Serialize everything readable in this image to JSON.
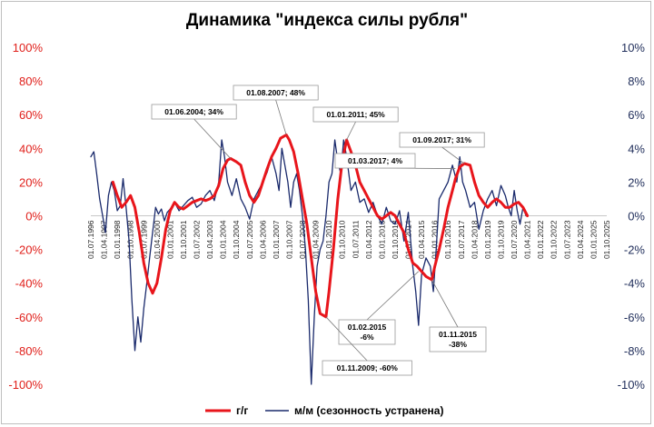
{
  "chart_data": {
    "type": "line",
    "title": "Динамика \"индекса силы рубля\"",
    "left_axis": {
      "ticks": [
        "100%",
        "80%",
        "60%",
        "40%",
        "20%",
        "0%",
        "-20%",
        "-40%",
        "-60%",
        "-80%",
        "-100%"
      ],
      "values": [
        100,
        80,
        60,
        40,
        20,
        0,
        -20,
        -40,
        -60,
        -80,
        -100
      ],
      "range": [
        -100,
        100
      ],
      "color": "#e0201b"
    },
    "right_axis": {
      "ticks": [
        "10%",
        "8%",
        "6%",
        "4%",
        "2%",
        "0%",
        "-2%",
        "-4%",
        "-6%",
        "-8%",
        "-10%"
      ],
      "values": [
        10,
        8,
        6,
        4,
        2,
        0,
        -2,
        -4,
        -6,
        -8,
        -10
      ],
      "range": [
        -10,
        10
      ],
      "color": "#1f2d5a"
    },
    "x_range": [
      1996.5,
      2025.75
    ],
    "x_tick_labels": [
      "01.07.1996",
      "01.04.1997",
      "01.01.1998",
      "01.10.1998",
      "01.07.1999",
      "01.04.2000",
      "01.01.2001",
      "01.10.2001",
      "01.07.2002",
      "01.04.2003",
      "01.01.2004",
      "01.10.2004",
      "01.07.2005",
      "01.04.2006",
      "01.01.2007",
      "01.10.2007",
      "01.07.2008",
      "01.04.2009",
      "01.01.2010",
      "01.10.2010",
      "01.07.2011",
      "01.04.2012",
      "01.01.2013",
      "01.10.2013",
      "01.07.2014",
      "01.04.2015",
      "01.01.2016",
      "01.10.2016",
      "01.07.2017",
      "01.04.2018",
      "01.01.2019",
      "01.10.2019",
      "01.07.2020",
      "01.04.2021",
      "01.01.2022",
      "01.10.2022",
      "01.07.2023",
      "01.04.2024",
      "01.01.2025",
      "01.10.2025"
    ],
    "x_tick_values": [
      1996.5,
      1997.25,
      1998.0,
      1998.75,
      1999.5,
      2000.25,
      2001.0,
      2001.75,
      2002.5,
      2003.25,
      2004.0,
      2004.75,
      2005.5,
      2006.25,
      2007.0,
      2007.75,
      2008.5,
      2009.25,
      2010.0,
      2010.75,
      2011.5,
      2012.25,
      2013.0,
      2013.75,
      2014.5,
      2015.25,
      2016.0,
      2016.75,
      2017.5,
      2018.25,
      2019.0,
      2019.75,
      2020.5,
      2021.25,
      2022.0,
      2022.75,
      2023.5,
      2024.25,
      2025.0,
      2025.75
    ],
    "series": [
      {
        "name": "г/г",
        "axis": "left",
        "color": "#e8151b",
        "x": [
          1997.75,
          1998.0,
          1998.25,
          1998.5,
          1998.75,
          1999.0,
          1999.25,
          1999.5,
          1999.75,
          2000.0,
          2000.25,
          2000.5,
          2000.75,
          2001.0,
          2001.25,
          2001.5,
          2001.75,
          2002.0,
          2002.25,
          2002.5,
          2002.75,
          2003.0,
          2003.25,
          2003.5,
          2003.75,
          2004.0,
          2004.25,
          2004.42,
          2004.75,
          2005.0,
          2005.25,
          2005.5,
          2005.75,
          2006.0,
          2006.25,
          2006.5,
          2006.75,
          2007.0,
          2007.25,
          2007.58,
          2007.75,
          2008.0,
          2008.25,
          2008.5,
          2008.75,
          2009.0,
          2009.25,
          2009.5,
          2009.83,
          2010.0,
          2010.25,
          2010.5,
          2010.75,
          2011.0,
          2011.25,
          2011.5,
          2011.75,
          2012.0,
          2012.25,
          2012.5,
          2012.75,
          2013.0,
          2013.25,
          2013.5,
          2013.75,
          2014.0,
          2014.25,
          2014.5,
          2014.75,
          2015.0,
          2015.25,
          2015.5,
          2015.83,
          2016.0,
          2016.25,
          2016.5,
          2016.75,
          2017.0,
          2017.17,
          2017.42,
          2017.67,
          2018.0,
          2018.25,
          2018.5,
          2018.75,
          2019.0,
          2019.25,
          2019.5,
          2019.75,
          2020.0,
          2020.25,
          2020.5,
          2020.75,
          2021.0,
          2021.25
        ],
        "y": [
          20,
          12,
          5,
          8,
          12,
          5,
          -10,
          -28,
          -40,
          -46,
          -40,
          -25,
          -8,
          3,
          8,
          5,
          4,
          6,
          8,
          9,
          10,
          9,
          10,
          12,
          18,
          28,
          33,
          34,
          32,
          30,
          20,
          12,
          8,
          12,
          20,
          28,
          35,
          40,
          46,
          48,
          45,
          38,
          25,
          10,
          -5,
          -25,
          -45,
          -58,
          -60,
          -45,
          -20,
          10,
          32,
          45,
          38,
          30,
          20,
          15,
          10,
          5,
          0,
          -2,
          0,
          2,
          0,
          -5,
          -10,
          -20,
          -28,
          -30,
          -33,
          -36,
          -38,
          -30,
          -20,
          -8,
          5,
          15,
          22,
          29,
          31,
          30,
          20,
          12,
          8,
          5,
          8,
          10,
          8,
          5,
          5,
          7,
          8,
          5,
          0
        ]
      },
      {
        "name": "м/м (сезонность устранена)",
        "axis": "right",
        "color": "#1a2a6c",
        "x": [
          1996.5,
          1996.67,
          1996.83,
          1997.0,
          1997.17,
          1997.33,
          1997.5,
          1997.67,
          1997.83,
          1998.0,
          1998.17,
          1998.33,
          1998.5,
          1998.67,
          1998.83,
          1999.0,
          1999.17,
          1999.33,
          1999.5,
          1999.67,
          1999.83,
          2000.0,
          2000.17,
          2000.33,
          2000.5,
          2000.67,
          2000.83,
          2001.0,
          2001.25,
          2001.5,
          2001.75,
          2002.0,
          2002.25,
          2002.5,
          2002.75,
          2003.0,
          2003.25,
          2003.5,
          2003.75,
          2003.92,
          2004.08,
          2004.25,
          2004.5,
          2004.75,
          2005.0,
          2005.25,
          2005.5,
          2005.75,
          2006.0,
          2006.25,
          2006.5,
          2006.75,
          2007.0,
          2007.17,
          2007.33,
          2007.5,
          2007.67,
          2007.83,
          2008.0,
          2008.17,
          2008.33,
          2008.5,
          2008.67,
          2008.83,
          2009.0,
          2009.17,
          2009.33,
          2009.5,
          2009.67,
          2009.83,
          2010.0,
          2010.17,
          2010.33,
          2010.5,
          2010.67,
          2010.83,
          2011.0,
          2011.25,
          2011.5,
          2011.75,
          2012.0,
          2012.25,
          2012.5,
          2012.75,
          2013.0,
          2013.25,
          2013.5,
          2013.75,
          2014.0,
          2014.25,
          2014.5,
          2014.75,
          2014.92,
          2015.08,
          2015.25,
          2015.5,
          2015.75,
          2015.92,
          2016.08,
          2016.25,
          2016.5,
          2016.75,
          2017.0,
          2017.25,
          2017.42,
          2017.58,
          2017.75,
          2018.0,
          2018.25,
          2018.5,
          2018.75,
          2019.0,
          2019.25,
          2019.5,
          2019.75,
          2020.0,
          2020.17,
          2020.33,
          2020.5,
          2020.67,
          2020.83,
          2021.0,
          2021.17
        ],
        "y": [
          3.5,
          3.8,
          2.5,
          1.0,
          0.0,
          -1.0,
          1.2,
          2.0,
          1.5,
          0.3,
          0.6,
          2.2,
          0.5,
          -1.5,
          -5.0,
          -8.0,
          -6.0,
          -7.5,
          -5.5,
          -4.0,
          -2.5,
          -1.0,
          0.5,
          0.1,
          0.4,
          -0.3,
          0.2,
          0.4,
          0.8,
          0.3,
          0.6,
          0.9,
          1.1,
          0.5,
          0.7,
          1.2,
          1.5,
          0.9,
          2.0,
          4.5,
          3.5,
          2.0,
          1.2,
          2.2,
          1.0,
          0.5,
          -0.2,
          1.0,
          1.5,
          2.0,
          2.6,
          3.5,
          2.5,
          1.5,
          4.0,
          3.0,
          2.0,
          0.5,
          2.0,
          2.5,
          1.5,
          0.0,
          -2.0,
          -5.0,
          -10.0,
          -6.0,
          -3.0,
          -2.0,
          -1.5,
          0.0,
          2.0,
          2.5,
          4.5,
          3.2,
          2.5,
          4.5,
          3.5,
          1.5,
          2.0,
          0.8,
          1.0,
          0.2,
          0.8,
          0.0,
          -0.5,
          0.5,
          -0.3,
          -0.5,
          0.3,
          -1.5,
          0.2,
          -3.0,
          -4.5,
          -6.5,
          -3.5,
          -2.5,
          -3.0,
          -4.5,
          -2.0,
          1.0,
          1.5,
          2.0,
          3.0,
          2.0,
          3.5,
          2.0,
          1.5,
          0.5,
          0.8,
          -0.8,
          0.3,
          1.0,
          1.5,
          0.6,
          1.8,
          1.2,
          0.5,
          0.0,
          1.5,
          0.3,
          -0.5,
          0.5,
          0.0
        ]
      }
    ],
    "annotations": [
      {
        "lines": [
          "01.06.2004;  34%"
        ],
        "x": 2004.42,
        "y": 34,
        "axis": "left"
      },
      {
        "lines": [
          "01.08.2007;  48%"
        ],
        "x": 2007.58,
        "y": 48,
        "axis": "left"
      },
      {
        "lines": [
          "01.01.2011;  45%"
        ],
        "x": 2011.0,
        "y": 45,
        "axis": "left"
      },
      {
        "lines": [
          "01.09.2017;  31%"
        ],
        "x": 2017.67,
        "y": 31,
        "axis": "left"
      },
      {
        "lines": [
          "01.03.2017;  4%"
        ],
        "x": 2017.17,
        "y": 28,
        "axis": "left"
      },
      {
        "lines": [
          "01.02.2015",
          "-6%"
        ],
        "x": 2015.08,
        "y": -33,
        "axis": "left"
      },
      {
        "lines": [
          "01.11.2015",
          "-38%"
        ],
        "x": 2015.83,
        "y": -38,
        "axis": "left"
      },
      {
        "lines": [
          "01.11.2009;  -60%"
        ],
        "x": 2009.83,
        "y": -60,
        "axis": "left"
      }
    ],
    "legend": {
      "placement": "bottom-center",
      "items": [
        {
          "label": "г/г",
          "color": "#e8151b"
        },
        {
          "label": "м/м (сезонность  устранена)",
          "color": "#1a2a6c"
        }
      ]
    },
    "grid": false
  }
}
